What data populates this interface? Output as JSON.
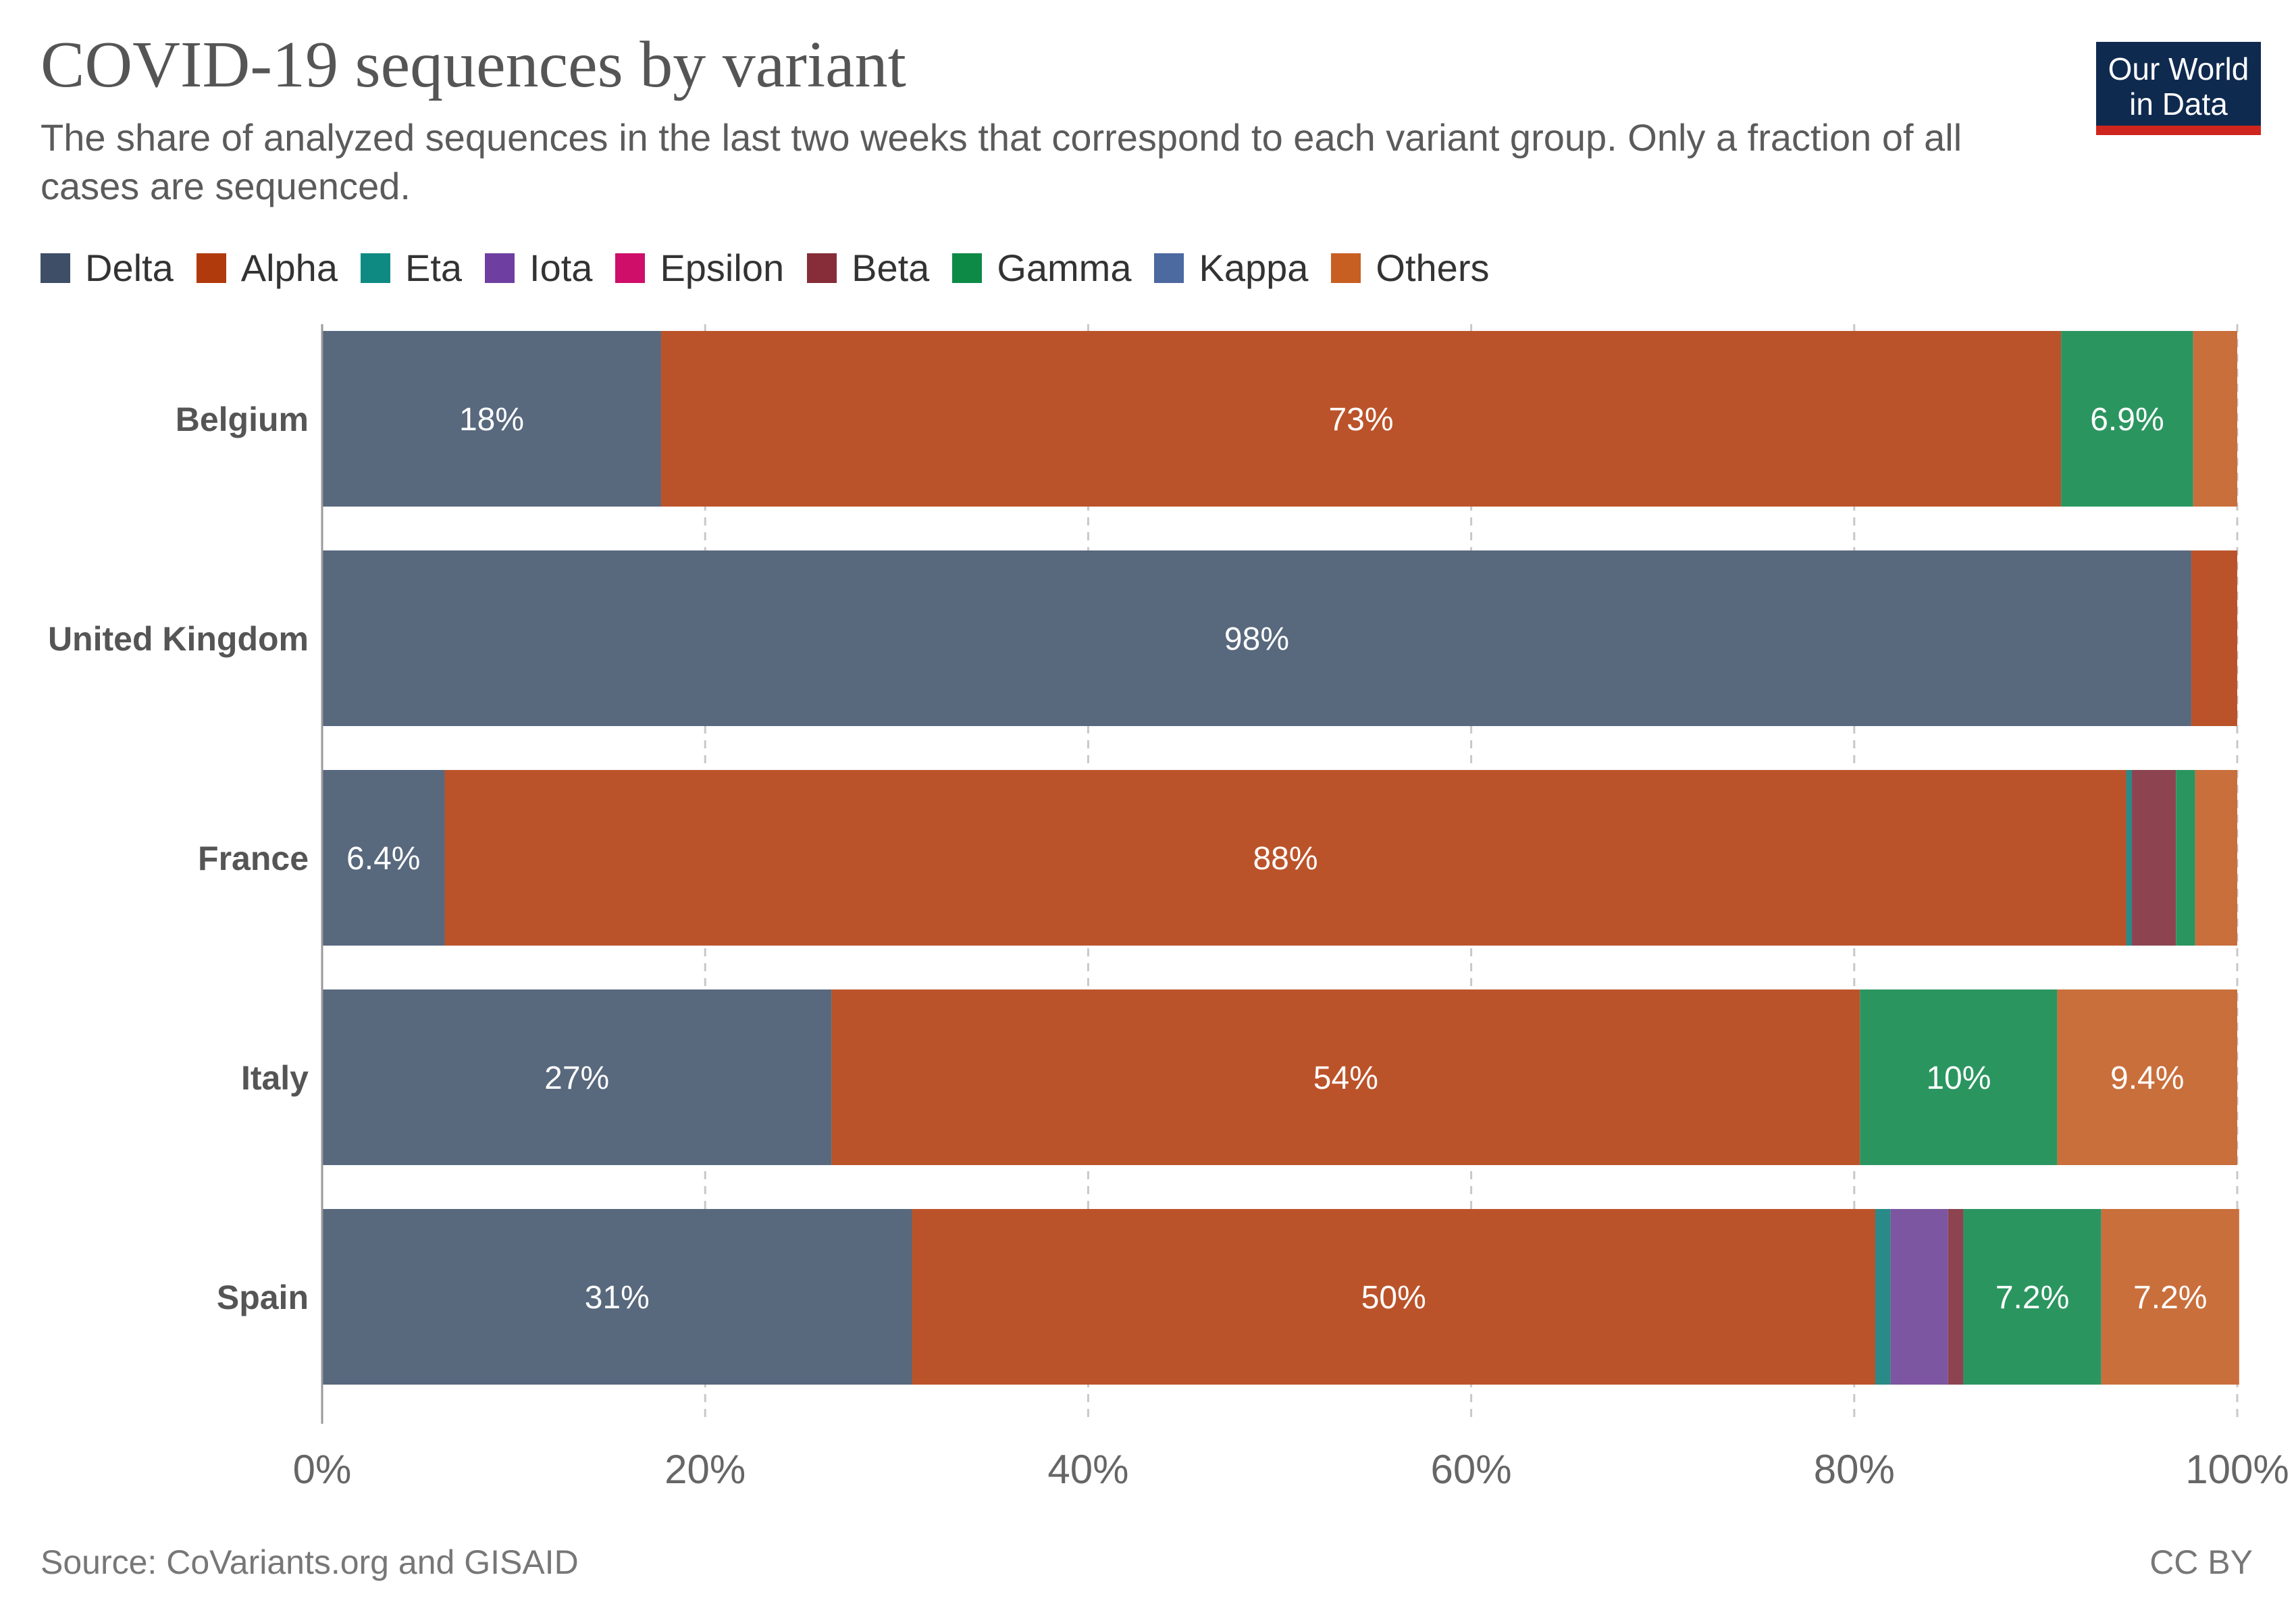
{
  "header": {
    "title": "COVID-19 sequences by variant",
    "subtitle": "The share of analyzed sequences in the last two weeks that correspond to each variant group. Only a fraction of all cases are sequenced."
  },
  "logo": {
    "line1": "Our World",
    "line2": "in Data"
  },
  "footer": {
    "source": "Source: CoVariants.org and GISAID",
    "license": "CC BY"
  },
  "colors": {
    "Delta": "#58687d",
    "Alpha": "#bb532a",
    "Eta": "#2a8a87",
    "Iota": "#7d56a1",
    "Epsilon": "#cc1f6e",
    "Beta": "#8d4450",
    "Gamma": "#2b9560",
    "Kappa": "#4f6fa3",
    "Others": "#c96f3c"
  },
  "legend_colors": {
    "Delta": "#3e4e66",
    "Alpha": "#b13a0c",
    "Eta": "#0f8a83",
    "Iota": "#6e3fa0",
    "Epsilon": "#cf0e6a",
    "Beta": "#862d39",
    "Gamma": "#0d8a46",
    "Kappa": "#4c69a0",
    "Others": "#c85f22"
  },
  "chart_data": {
    "type": "bar",
    "orientation": "horizontal",
    "stacked": true,
    "categories": [
      "Belgium",
      "United Kingdom",
      "France",
      "Italy",
      "Spain"
    ],
    "series": [
      {
        "name": "Delta",
        "values": [
          17.7,
          97.6,
          6.4,
          26.6,
          30.8
        ]
      },
      {
        "name": "Alpha",
        "values": [
          73.1,
          2.4,
          87.8,
          53.7,
          50.3
        ]
      },
      {
        "name": "Eta",
        "values": [
          0,
          0,
          0.3,
          0,
          0.8
        ]
      },
      {
        "name": "Iota",
        "values": [
          0,
          0,
          0,
          0,
          3.0
        ]
      },
      {
        "name": "Epsilon",
        "values": [
          0,
          0,
          0,
          0,
          0
        ]
      },
      {
        "name": "Beta",
        "values": [
          0,
          0,
          2.3,
          0,
          0.8
        ]
      },
      {
        "name": "Gamma",
        "values": [
          6.9,
          0,
          1.0,
          10.3,
          7.2
        ]
      },
      {
        "name": "Kappa",
        "values": [
          0,
          0,
          0,
          0,
          0
        ]
      },
      {
        "name": "Others",
        "values": [
          2.3,
          0,
          2.2,
          9.4,
          7.2
        ]
      }
    ],
    "data_labels": [
      {
        "country": "Belgium",
        "series": "Delta",
        "text": "18%"
      },
      {
        "country": "Belgium",
        "series": "Alpha",
        "text": "73%"
      },
      {
        "country": "Belgium",
        "series": "Gamma",
        "text": "6.9%"
      },
      {
        "country": "United Kingdom",
        "series": "Delta",
        "text": "98%"
      },
      {
        "country": "France",
        "series": "Delta",
        "text": "6.4%"
      },
      {
        "country": "France",
        "series": "Alpha",
        "text": "88%"
      },
      {
        "country": "Italy",
        "series": "Delta",
        "text": "27%"
      },
      {
        "country": "Italy",
        "series": "Alpha",
        "text": "54%"
      },
      {
        "country": "Italy",
        "series": "Gamma",
        "text": "10%"
      },
      {
        "country": "Italy",
        "series": "Others",
        "text": "9.4%"
      },
      {
        "country": "Spain",
        "series": "Delta",
        "text": "31%"
      },
      {
        "country": "Spain",
        "series": "Alpha",
        "text": "50%"
      },
      {
        "country": "Spain",
        "series": "Gamma",
        "text": "7.2%"
      },
      {
        "country": "Spain",
        "series": "Others",
        "text": "7.2%"
      }
    ],
    "x_ticks": [
      0,
      20,
      40,
      60,
      80,
      100
    ],
    "x_tick_labels": [
      "0%",
      "20%",
      "40%",
      "60%",
      "80%",
      "100%"
    ],
    "xlim": [
      0,
      100
    ],
    "grid": "vertical dashed",
    "legend_position": "top"
  }
}
